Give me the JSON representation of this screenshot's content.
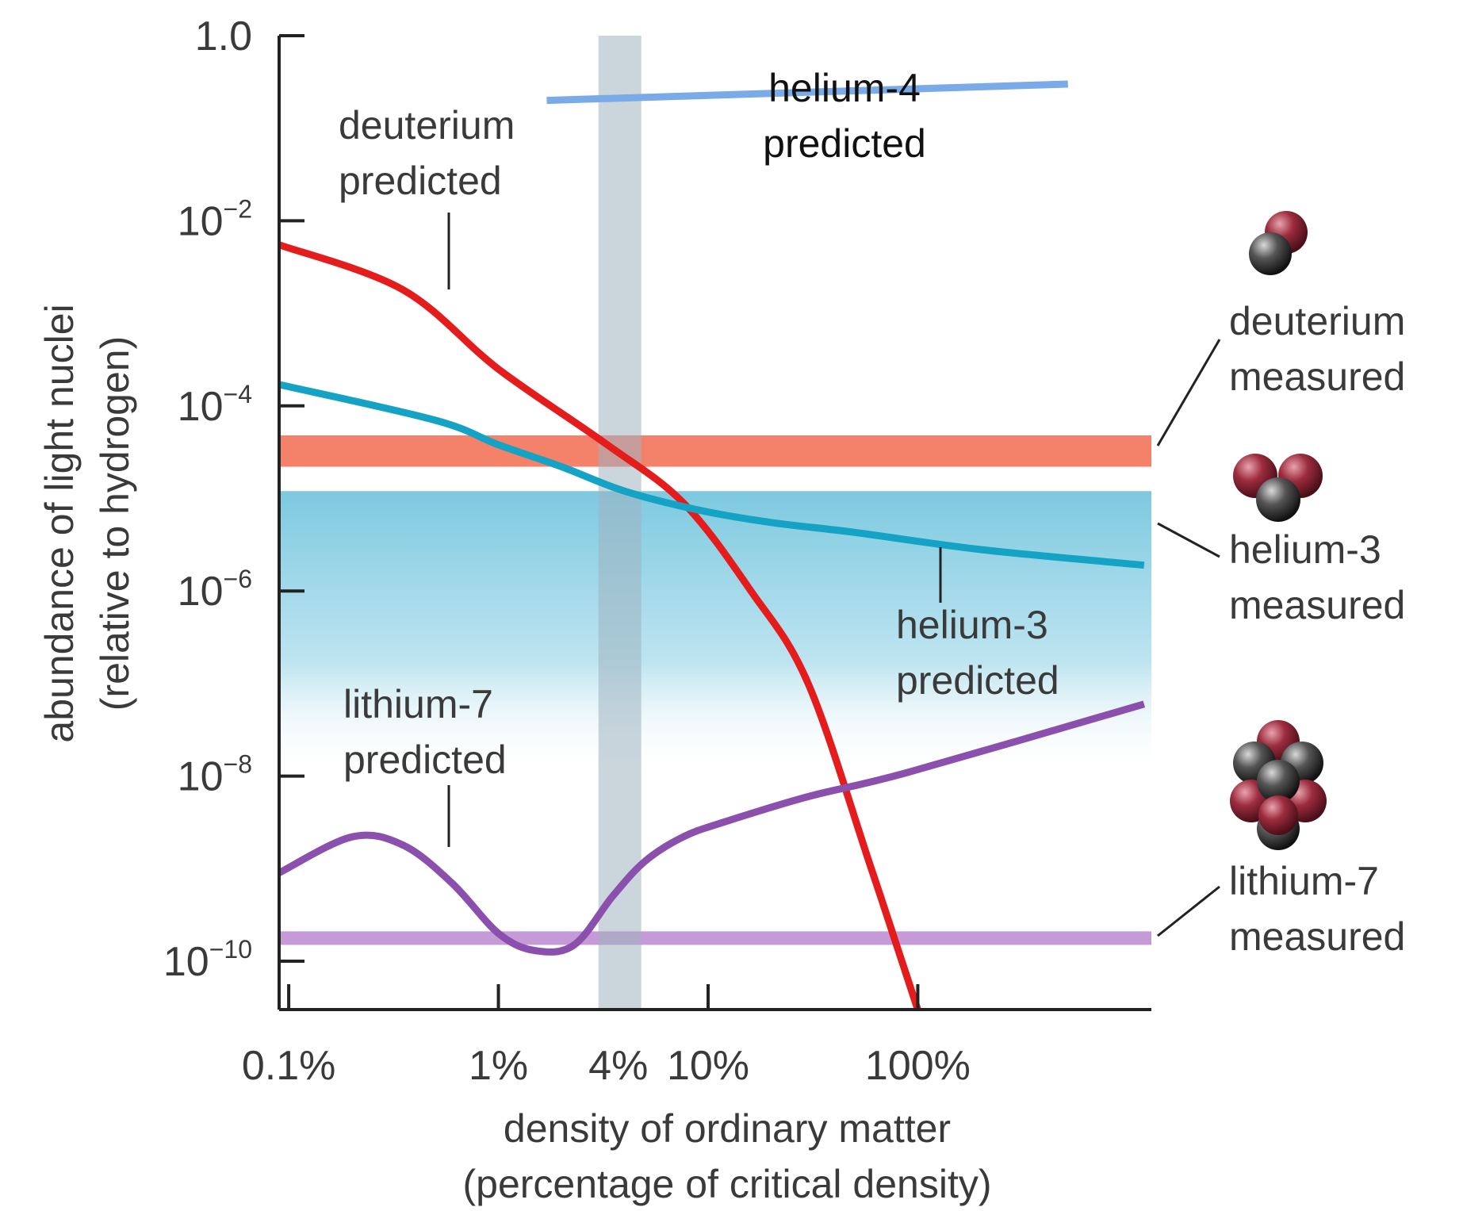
{
  "chart_data": {
    "type": "line",
    "xscale": "log",
    "yscale": "log",
    "xlabel": [
      "density of ordinary matter",
      "(percentage of critical density)"
    ],
    "ylabel": [
      "abundance of light nuclei",
      "(relative to hydrogen)"
    ],
    "xlim": [
      0.09,
      1300
    ],
    "ylim": [
      3e-11,
      1.0
    ],
    "x_ticks": [
      {
        "value": 0.1,
        "label": "0.1%"
      },
      {
        "value": 1,
        "label": "1%"
      },
      {
        "value": 10,
        "label": "10%"
      },
      {
        "value": 100,
        "label": "100%"
      }
    ],
    "x_extra_labels": [
      {
        "value": 4,
        "label": "4%"
      }
    ],
    "y_ticks": [
      {
        "value": 1.0,
        "base": "1.0",
        "exp": ""
      },
      {
        "value": 0.01,
        "base": "10",
        "exp": "−2"
      },
      {
        "value": 0.0001,
        "base": "10",
        "exp": "−4"
      },
      {
        "value": 1e-06,
        "base": "10",
        "exp": "−6"
      },
      {
        "value": 1e-08,
        "base": "10",
        "exp": "−8"
      },
      {
        "value": 1e-10,
        "base": "10",
        "exp": "−10"
      }
    ],
    "highlight_band_x": [
      3.0,
      4.8
    ],
    "series": [
      {
        "name": "helium-4 predicted",
        "color": "#7aaae8",
        "x": [
          1.7,
          520
        ],
        "y": [
          0.2,
          0.3
        ]
      },
      {
        "name": "deuterium predicted",
        "color": "#e51c1c",
        "x": [
          0.09,
          0.35,
          1,
          3.2,
          7.6,
          16,
          30,
          60,
          100
        ],
        "y": [
          0.0055,
          0.0018,
          0.00025,
          4e-05,
          9e-06,
          1e-06,
          1e-07,
          1e-09,
          3e-11
        ]
      },
      {
        "name": "helium-3 predicted",
        "color": "#14a3c4",
        "x": [
          0.09,
          0.5,
          1,
          2,
          4,
          9,
          20,
          50,
          200,
          1200
        ],
        "y": [
          0.00017,
          7e-05,
          3.8e-05,
          2.2e-05,
          1.2e-05,
          7.5e-06,
          5.5e-06,
          4.3e-06,
          2.8e-06,
          1.9e-06
        ]
      },
      {
        "name": "lithium-7 predicted",
        "color": "#8b4fae",
        "x": [
          0.09,
          0.2,
          0.35,
          0.6,
          1,
          1.5,
          2.3,
          3.5,
          5,
          7.6,
          12,
          30,
          90,
          1200
        ],
        "y": [
          9e-10,
          2.2e-09,
          1.8e-09,
          7e-10,
          2e-10,
          1.3e-10,
          1.5e-10,
          5e-10,
          1.2e-09,
          2.2e-09,
          3.2e-09,
          6e-09,
          1.1e-08,
          6e-08
        ]
      }
    ],
    "measured_bands": [
      {
        "name": "deuterium",
        "color": "#f4826a",
        "y_range": [
          2.2e-05,
          4.8e-05
        ]
      },
      {
        "name": "helium-3",
        "color": "#8fd0e3",
        "y_range": [
          1e-08,
          1.2e-05
        ]
      },
      {
        "name": "lithium-7",
        "color": "#c49bd6",
        "y_range": [
          1.5e-10,
          2.1e-10
        ]
      }
    ],
    "annotations": [
      {
        "id": "he4",
        "lines": [
          "helium-4",
          "predicted"
        ]
      },
      {
        "id": "d_pred",
        "lines": [
          "deuterium",
          "predicted"
        ]
      },
      {
        "id": "he3_pred",
        "lines": [
          "helium-3",
          "predicted"
        ]
      },
      {
        "id": "li7_pred",
        "lines": [
          "lithium-7",
          "predicted"
        ]
      },
      {
        "id": "d_meas",
        "lines": [
          "deuterium",
          "measured"
        ]
      },
      {
        "id": "he3_meas",
        "lines": [
          "helium-3",
          "measured"
        ]
      },
      {
        "id": "li7_meas",
        "lines": [
          "lithium-7",
          "measured"
        ]
      }
    ]
  }
}
